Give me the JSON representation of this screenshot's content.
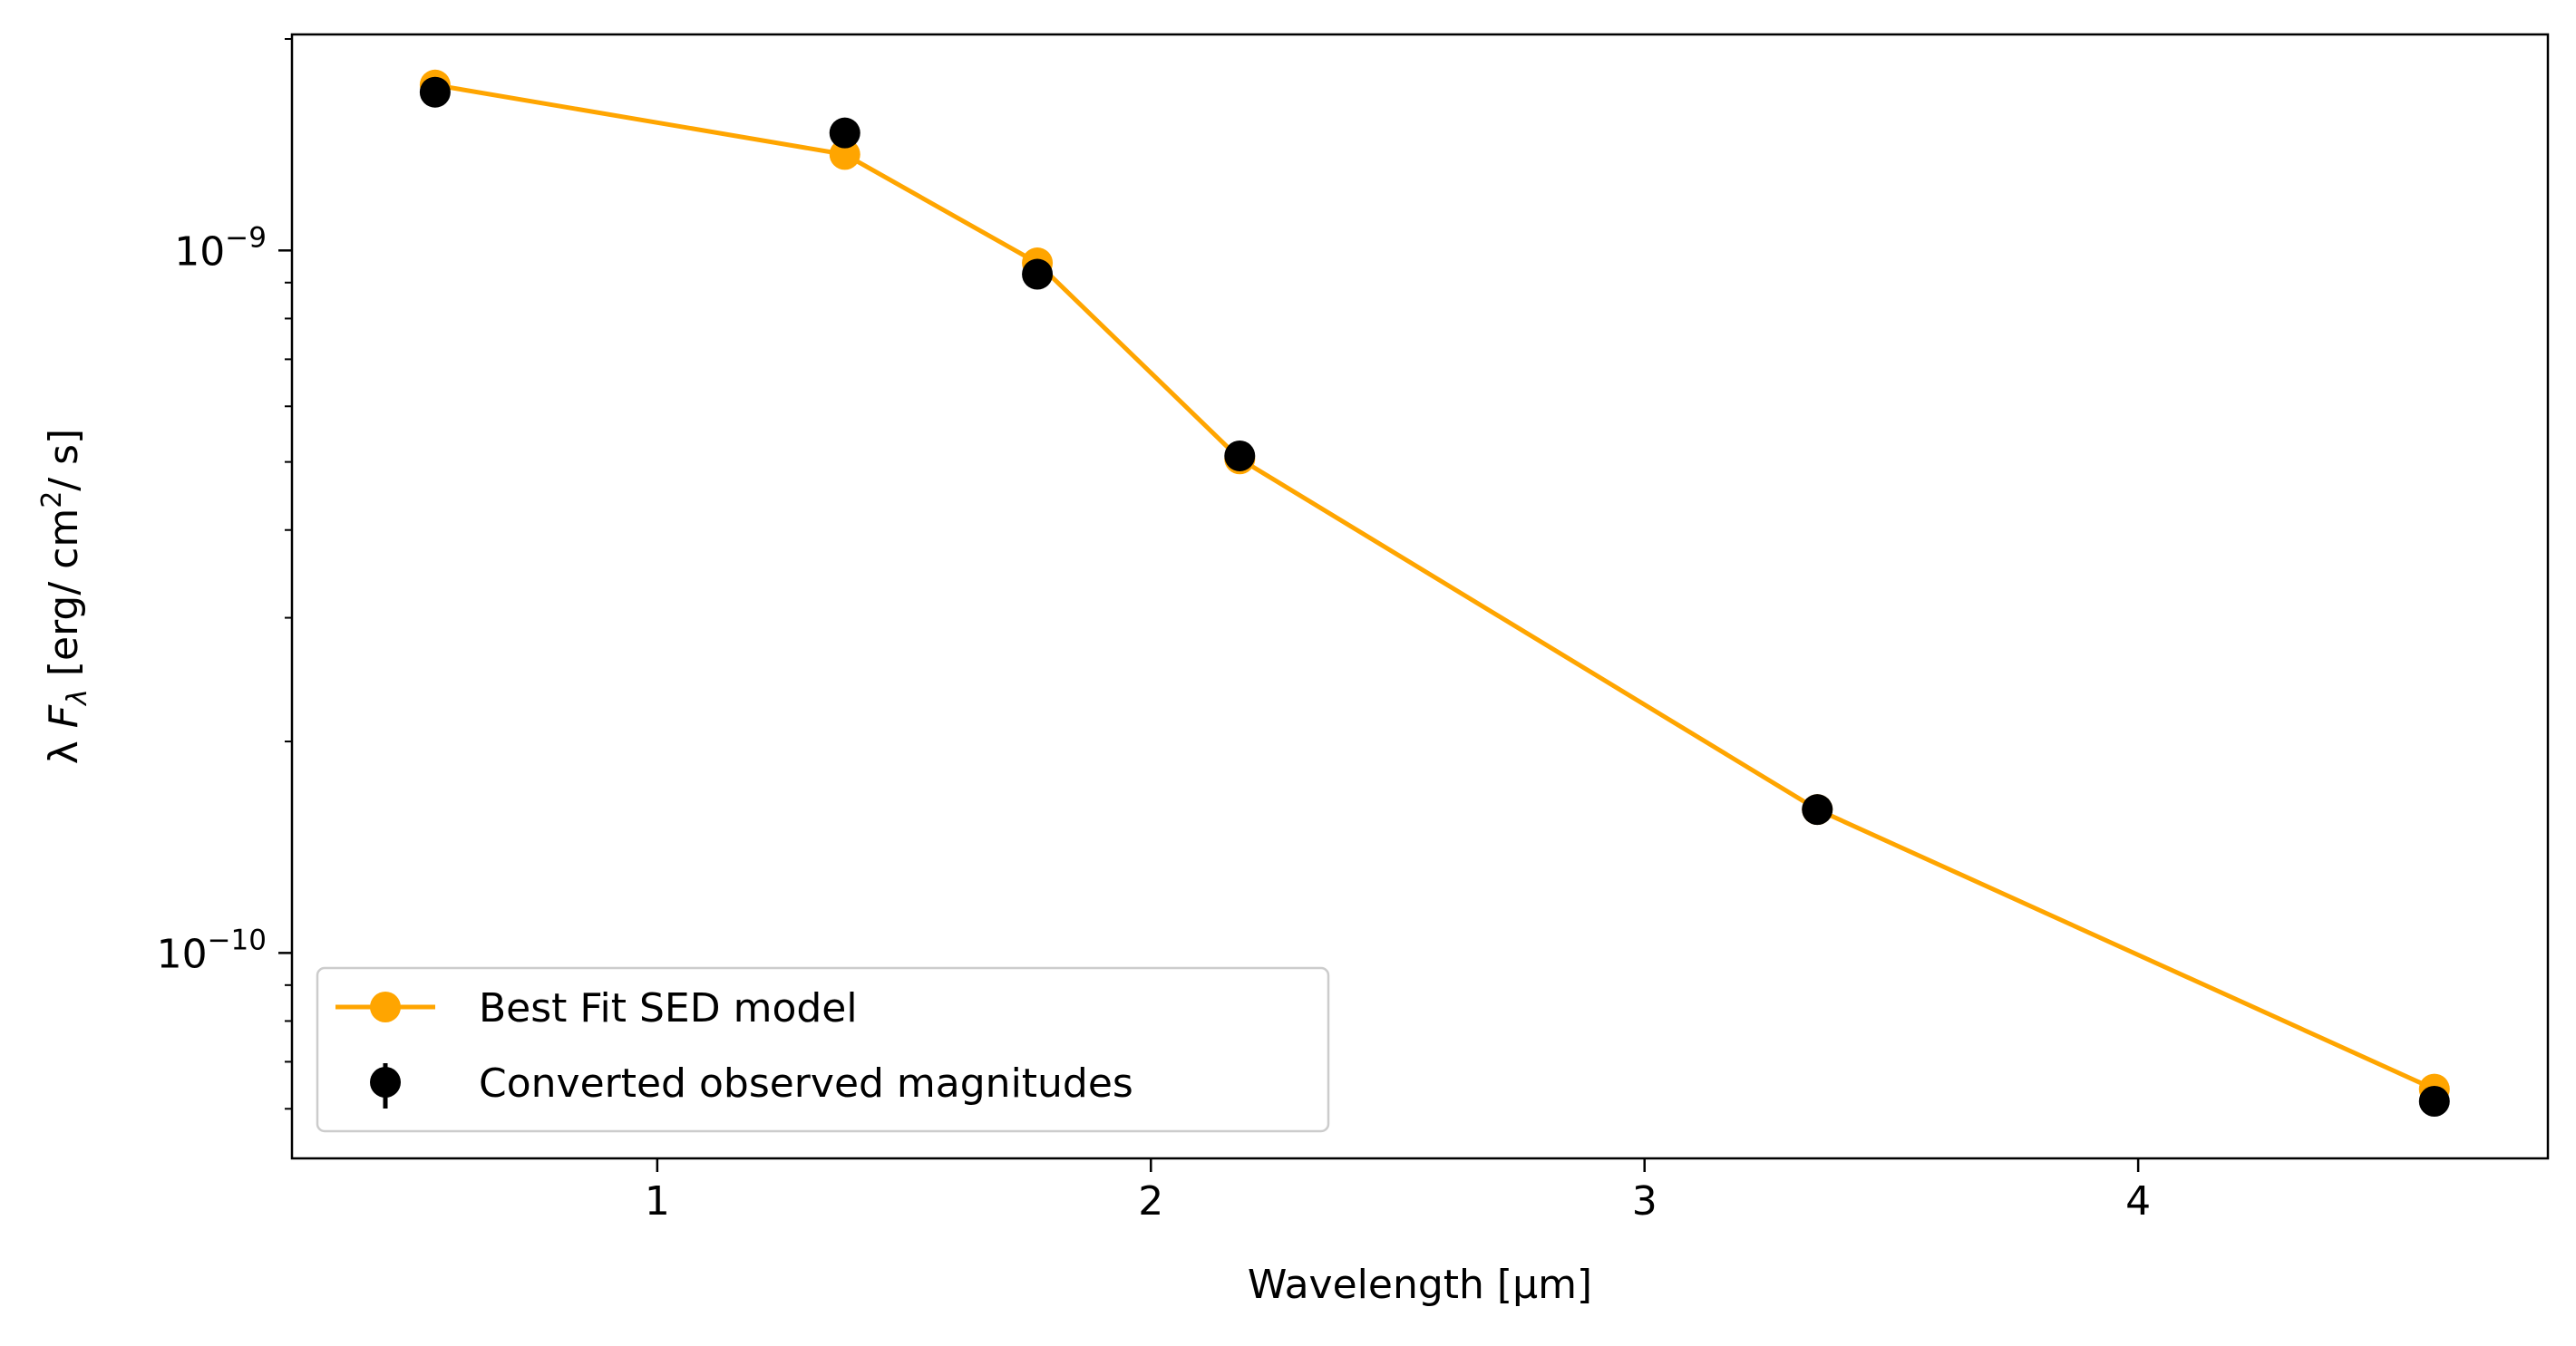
{
  "chart_data": {
    "type": "line",
    "title": "",
    "xlabel": "Wavelength [μm]",
    "ylabel": "λ F_λ [erg/ cm²/ s]",
    "ylabel_parts": {
      "pre": "λ ",
      "f": "F",
      "sub": "λ",
      "mid": " [erg/ cm",
      "sup": "2",
      "post": "/ s]"
    },
    "xlim": [
      0.26,
      4.83
    ],
    "ylim": [
      5.1e-11,
      2.03e-09
    ],
    "yscale": "log",
    "grid": false,
    "legend_position": "lower left",
    "x_ticks": [
      {
        "value": 1,
        "label": "1"
      },
      {
        "value": 2,
        "label": "2"
      },
      {
        "value": 3,
        "label": "3"
      },
      {
        "value": 4,
        "label": "4"
      }
    ],
    "y_ticks": [
      {
        "value": 1e-10,
        "base": "10",
        "exp": "−10"
      },
      {
        "value": 1e-09,
        "base": "10",
        "exp": "−9"
      }
    ],
    "series": [
      {
        "name": "Best Fit SED model",
        "style": "line-marker",
        "color": "#FFA500",
        "x": [
          0.55,
          1.38,
          1.77,
          2.18,
          3.35,
          4.6
        ],
        "y": [
          1.72e-09,
          1.37e-09,
          9.6e-10,
          5.05e-10,
          1.6e-10,
          6.4e-11
        ]
      },
      {
        "name": "Converted observed magnitudes",
        "style": "errorbar-marker",
        "color": "#000000",
        "x": [
          0.55,
          1.38,
          1.77,
          2.18,
          3.35,
          4.6
        ],
        "y": [
          1.68e-09,
          1.47e-09,
          9.25e-10,
          5.1e-10,
          1.6e-10,
          6.15e-11
        ]
      }
    ]
  }
}
